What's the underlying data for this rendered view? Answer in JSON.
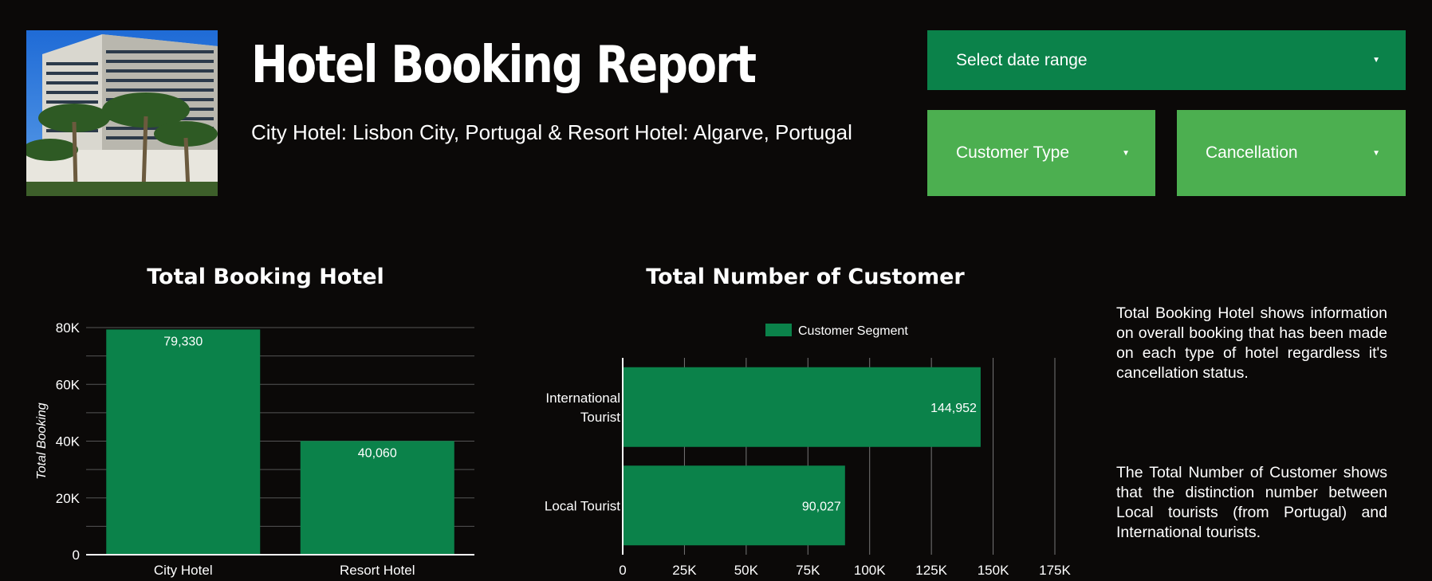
{
  "header": {
    "title": "Hotel Booking Report",
    "subtitle": "City Hotel: Lisbon City, Portugal & Resort Hotel: Algarve, Portugal"
  },
  "filters": {
    "date_range": "Select date range",
    "customer_type": "Customer Type",
    "cancellation": "Cancellation"
  },
  "colors": {
    "bar": "#0b824a",
    "dark_green": "#0b824a",
    "light_green": "#4caf50",
    "background": "#0b0908"
  },
  "chart_data": [
    {
      "type": "bar",
      "title": "Total Booking Hotel",
      "categories": [
        "City Hotel",
        "Resort Hotel"
      ],
      "values": [
        79330,
        40060
      ],
      "value_labels": [
        "79,330",
        "40,060"
      ],
      "xlabel": "",
      "ylabel": "Total Booking",
      "ylim": [
        0,
        80000
      ],
      "yticks": [
        "0",
        "20K",
        "40K",
        "60K",
        "80K"
      ],
      "grid": true
    },
    {
      "type": "bar",
      "orientation": "horizontal",
      "title": "Total Number of Customer",
      "categories": [
        [
          "International",
          "Tourist"
        ],
        [
          "Local Tourist"
        ]
      ],
      "series": [
        {
          "name": "Customer Segment",
          "values": [
            144952,
            90027
          ]
        }
      ],
      "value_labels": [
        "144,952",
        "90,027"
      ],
      "xlim": [
        0,
        175000
      ],
      "xticks": [
        "0",
        "25K",
        "50K",
        "75K",
        "100K",
        "125K",
        "150K",
        "175K"
      ],
      "legend": "top",
      "grid": true
    }
  ],
  "descriptions": [
    "Total Booking Hotel shows information on overall booking that has been made on each type of hotel regardless it's cancellation status.",
    "The Total Number of Customer shows that the distinction number between Local tourists (from Portugal) and International tourists."
  ]
}
